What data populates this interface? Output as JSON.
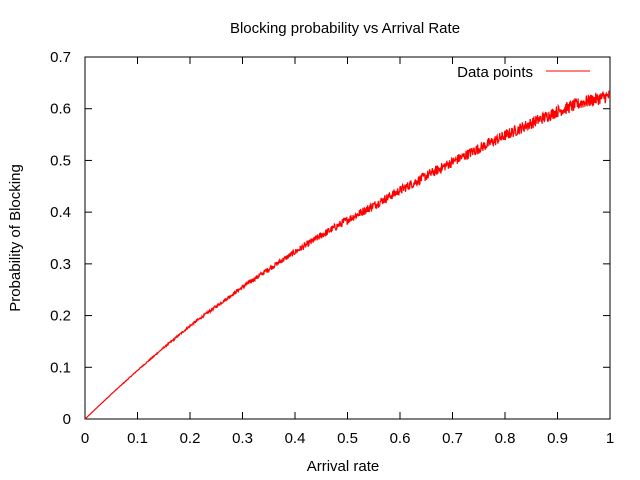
{
  "chart_data": {
    "type": "line",
    "title": "Blocking probability vs Arrival Rate",
    "xlabel": "Arrival rate",
    "ylabel": "Probability of Blocking",
    "xlim": [
      0,
      1
    ],
    "ylim": [
      0,
      0.7
    ],
    "xticks": [
      "0",
      "0.1",
      "0.2",
      "0.3",
      "0.4",
      "0.5",
      "0.6",
      "0.7",
      "0.8",
      "0.9",
      "1"
    ],
    "yticks": [
      "0",
      "0.1",
      "0.2",
      "0.3",
      "0.4",
      "0.5",
      "0.6",
      "0.7"
    ],
    "grid": false,
    "legend": {
      "position": "top-right",
      "entries": [
        "Data points"
      ]
    },
    "series": [
      {
        "name": "Data points",
        "color": "#ff0000",
        "x": [
          0,
          0.05,
          0.1,
          0.15,
          0.2,
          0.25,
          0.3,
          0.35,
          0.4,
          0.45,
          0.5,
          0.55,
          0.6,
          0.65,
          0.7,
          0.75,
          0.8,
          0.85,
          0.9,
          0.95,
          1.0
        ],
        "y": [
          0,
          0.048,
          0.094,
          0.138,
          0.18,
          0.218,
          0.255,
          0.29,
          0.323,
          0.355,
          0.385,
          0.413,
          0.442,
          0.47,
          0.497,
          0.523,
          0.548,
          0.572,
          0.595,
          0.613,
          0.625
        ]
      }
    ]
  }
}
